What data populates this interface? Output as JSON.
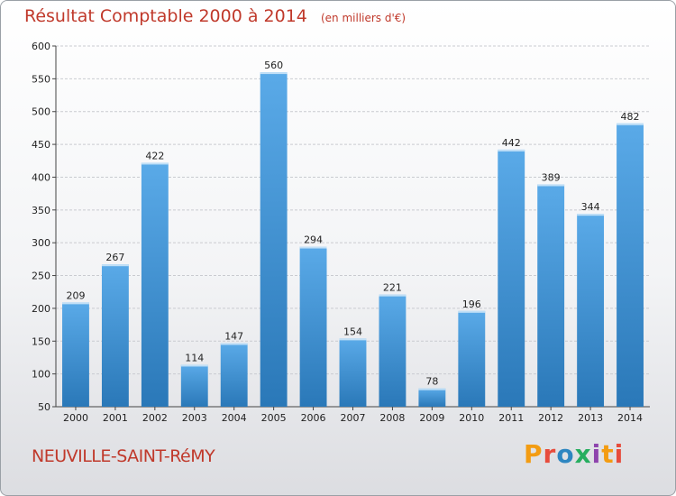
{
  "header": {
    "title": "Résultat Comptable 2000 à 2014",
    "subtitle": "(en milliers d'€)"
  },
  "footer": {
    "town": "NEUVILLE-SAINT-RéMY",
    "brand": "Proxiti",
    "brand_colors": [
      "#f39c12",
      "#e74c3c",
      "#2e86c1",
      "#27ae60",
      "#8e44ad",
      "#f39c12",
      "#e74c3c"
    ]
  },
  "colors": {
    "bar": "#3d8fd4",
    "bar_light": "#5aaae8",
    "bar_dark": "#2a78b8",
    "grid": "#c9cbd0"
  },
  "chart_data": {
    "type": "bar",
    "title": "Résultat Comptable 2000 à 2014",
    "subtitle": "(en milliers d'€)",
    "categories": [
      "2000",
      "2001",
      "2002",
      "2003",
      "2004",
      "2005",
      "2006",
      "2007",
      "2008",
      "2009",
      "2010",
      "2011",
      "2012",
      "2013",
      "2014"
    ],
    "values": [
      209,
      267,
      422,
      114,
      147,
      560,
      294,
      154,
      221,
      78,
      196,
      442,
      389,
      344,
      482
    ],
    "ylim": [
      50,
      600
    ],
    "yticks": [
      50,
      100,
      150,
      200,
      250,
      300,
      350,
      400,
      450,
      500,
      550,
      600
    ],
    "grid": true,
    "xlabel": "",
    "ylabel": ""
  }
}
